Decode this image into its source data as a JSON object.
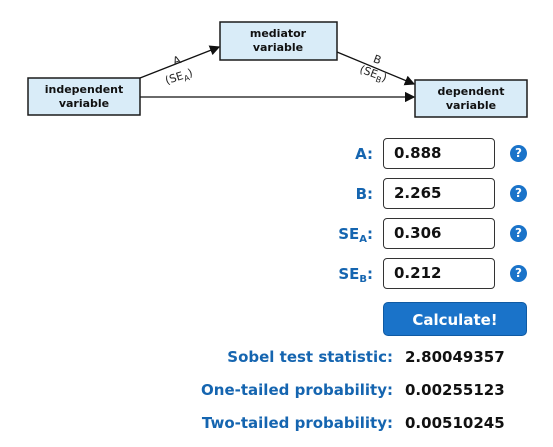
{
  "diagram": {
    "independent": [
      "independent",
      "variable"
    ],
    "mediator": [
      "mediator",
      "variable"
    ],
    "dependent": [
      "dependent",
      "variable"
    ],
    "path_a": {
      "label": "A",
      "se": "(SE",
      "sub": "A",
      "close": ")"
    },
    "path_b": {
      "label": "B",
      "se": "(SE",
      "sub": "B",
      "close": ")"
    }
  },
  "fields": [
    {
      "main": "A",
      "suffix": ":",
      "value": 0.888,
      "help": "?"
    },
    {
      "main": "B",
      "suffix": ":",
      "value": 2.265,
      "help": "?"
    },
    {
      "main": "SE",
      "sub": "A",
      "suffix": ":",
      "value": 0.306,
      "help": "?"
    },
    {
      "main": "SE",
      "sub": "B",
      "suffix": ":",
      "value": 0.212,
      "help": "?"
    }
  ],
  "button": "Calculate!",
  "results": [
    {
      "label": "Sobel test statistic:",
      "value": 2.80049357
    },
    {
      "label": "One-tailed probability:",
      "value": 0.00255123
    },
    {
      "label": "Two-tailed probability:",
      "value": 0.00510245
    }
  ]
}
